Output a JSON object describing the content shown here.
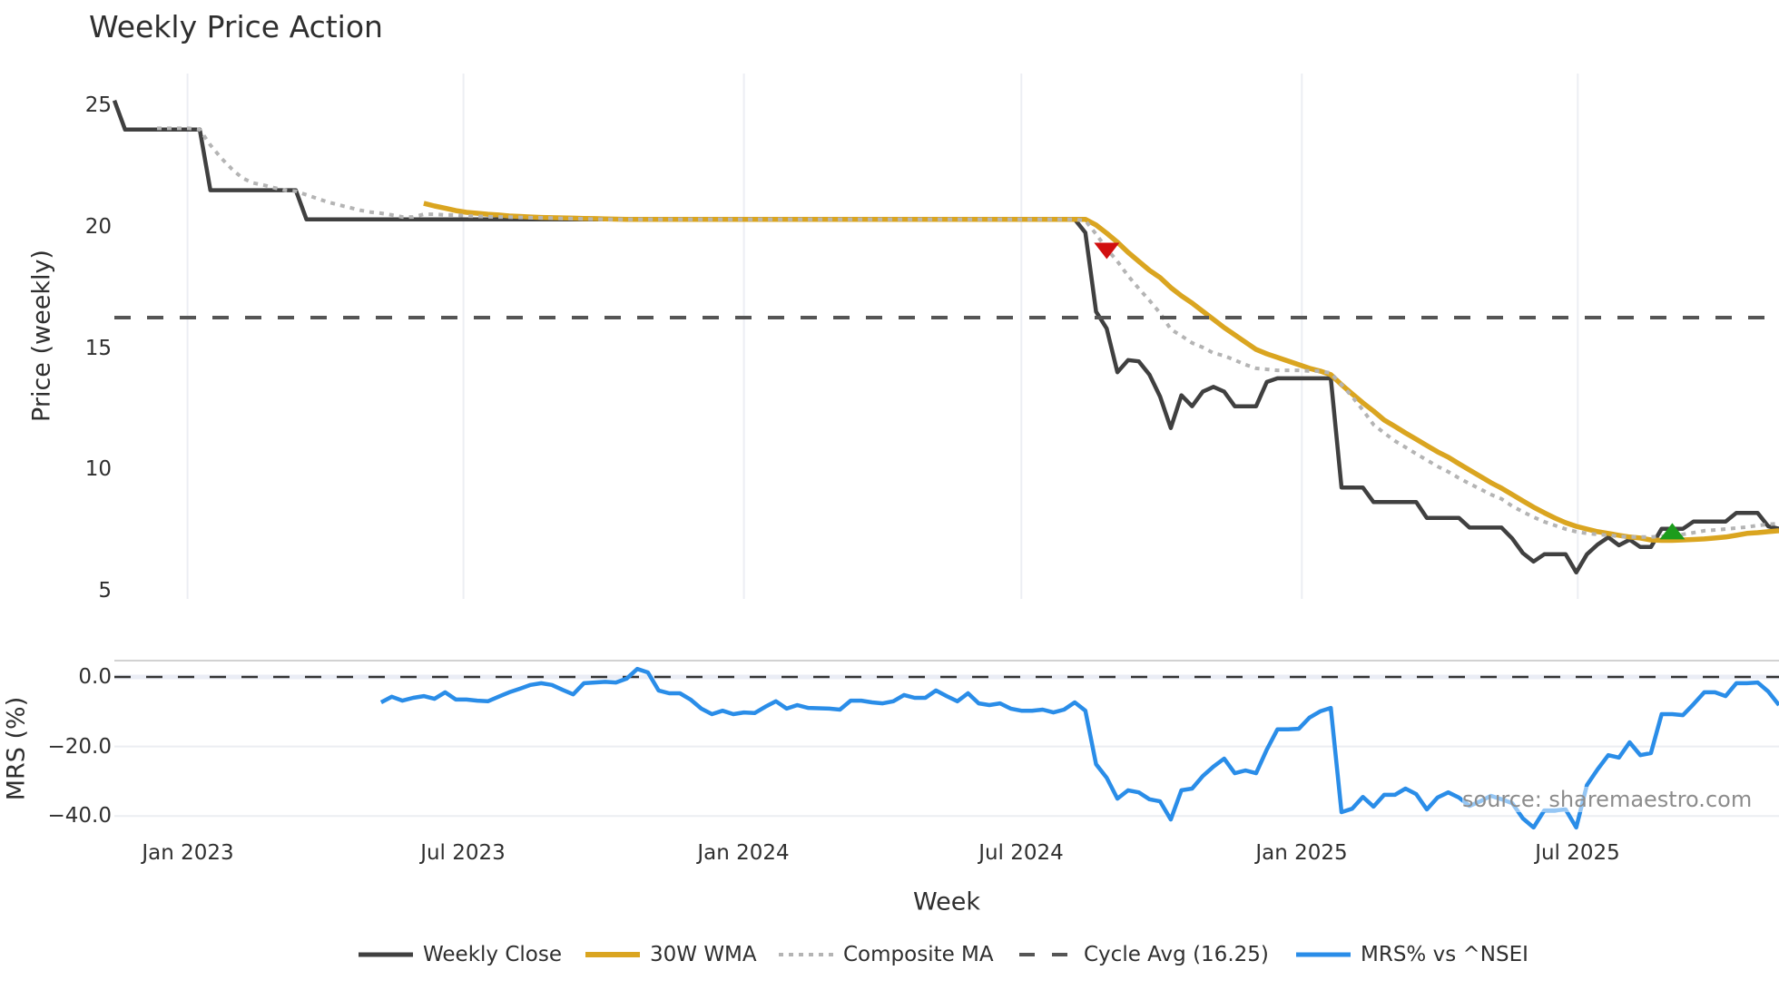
{
  "chart_data": {
    "type": "line",
    "title": "Weekly Price Action",
    "xlabel": "Week",
    "x_range": [
      "2022-11-14",
      "2025-11-10"
    ],
    "x_start": "2022-11-14",
    "x_step_days": 7,
    "xticks": [
      {
        "date": "2023-01-01",
        "label": "Jan 2023"
      },
      {
        "date": "2023-07-01",
        "label": "Jul 2023"
      },
      {
        "date": "2024-01-01",
        "label": "Jan 2024"
      },
      {
        "date": "2024-07-01",
        "label": "Jul 2024"
      },
      {
        "date": "2025-01-01",
        "label": "Jan 2025"
      },
      {
        "date": "2025-07-01",
        "label": "Jul 2025"
      }
    ],
    "grid": {
      "x": true,
      "y_price": false,
      "y_mrs": true
    },
    "legend_position": "bottom",
    "panels": [
      {
        "id": "price",
        "ylabel": "Price (weekly)",
        "yrange": [
          4.66,
          26.31
        ],
        "yticks": [
          {
            "value": 25,
            "label": "25"
          },
          {
            "value": 20,
            "label": "20"
          },
          {
            "value": 15,
            "label": "15"
          },
          {
            "value": 10,
            "label": "10"
          },
          {
            "value": 5,
            "label": "5"
          }
        ]
      },
      {
        "id": "mrs",
        "ylabel": "MRS (%)",
        "yrange": [
          -44.9,
          4.7
        ],
        "yticks": [
          {
            "value": 0,
            "label": "0.0"
          },
          {
            "value": -20,
            "label": "−20.0"
          },
          {
            "value": -40,
            "label": "−40.0"
          }
        ]
      }
    ],
    "series": [
      {
        "name": "Weekly Close",
        "panel": "price",
        "color": "#404040",
        "dash": "solid",
        "start_index": 0,
        "values": [
          25.2,
          24.0,
          24.0,
          24.0,
          24.0,
          24.0,
          24.0,
          24.0,
          24.0,
          21.5,
          21.5,
          21.5,
          21.5,
          21.5,
          21.5,
          21.5,
          21.5,
          21.5,
          20.3,
          20.3,
          20.3,
          20.3,
          20.3,
          20.3,
          20.3,
          20.3,
          20.3,
          20.3,
          20.3,
          20.3,
          20.3,
          20.3,
          20.3,
          20.3,
          20.3,
          20.3,
          20.3,
          20.3,
          20.3,
          20.3,
          20.3,
          20.3,
          20.3,
          20.3,
          20.3,
          20.3,
          20.3,
          20.3,
          20.3,
          20.3,
          20.3,
          20.3,
          20.3,
          20.3,
          20.3,
          20.3,
          20.3,
          20.3,
          20.3,
          20.3,
          20.3,
          20.3,
          20.3,
          20.3,
          20.3,
          20.3,
          20.3,
          20.3,
          20.3,
          20.3,
          20.3,
          20.3,
          20.3,
          20.3,
          20.3,
          20.3,
          20.3,
          20.3,
          20.3,
          20.3,
          20.3,
          20.3,
          20.3,
          20.3,
          20.3,
          20.3,
          20.3,
          20.3,
          20.3,
          20.3,
          20.3,
          19.75,
          16.5,
          15.8,
          14.0,
          14.5,
          14.45,
          13.9,
          13.0,
          11.7,
          13.05,
          12.6,
          13.2,
          13.4,
          13.2,
          12.6,
          12.6,
          12.6,
          13.6,
          13.75,
          13.75,
          13.75,
          13.75,
          13.75,
          13.75,
          9.25,
          9.25,
          9.25,
          8.65,
          8.65,
          8.65,
          8.65,
          8.65,
          8.0,
          8.0,
          8.0,
          8.0,
          7.6,
          7.6,
          7.6,
          7.6,
          7.15,
          6.55,
          6.2,
          6.5,
          6.5,
          6.5,
          5.75,
          6.5,
          6.9,
          7.2,
          6.87,
          7.1,
          6.8,
          6.8,
          7.55,
          7.55,
          7.55,
          7.85,
          7.85,
          7.85,
          7.85,
          8.2,
          8.2,
          8.2,
          7.65,
          7.55
        ]
      },
      {
        "name": "30W WMA",
        "panel": "price",
        "color": "#DAA520",
        "dash": "solid",
        "start_index": 29,
        "values": [
          20.96,
          20.85,
          20.76,
          20.66,
          20.59,
          20.55,
          20.51,
          20.48,
          20.44,
          20.42,
          20.4,
          20.38,
          20.37,
          20.36,
          20.35,
          20.34,
          20.33,
          20.32,
          20.31,
          20.3,
          20.3,
          20.3,
          20.3,
          20.3,
          20.3,
          20.3,
          20.3,
          20.3,
          20.3,
          20.3,
          20.3,
          20.3,
          20.3,
          20.3,
          20.3,
          20.3,
          20.3,
          20.3,
          20.3,
          20.3,
          20.3,
          20.3,
          20.3,
          20.3,
          20.3,
          20.3,
          20.3,
          20.3,
          20.3,
          20.3,
          20.3,
          20.3,
          20.3,
          20.3,
          20.3,
          20.3,
          20.3,
          20.3,
          20.3,
          20.3,
          20.3,
          20.3,
          20.3,
          20.07,
          19.73,
          19.36,
          18.94,
          18.57,
          18.2,
          17.9,
          17.49,
          17.15,
          16.85,
          16.51,
          16.18,
          15.84,
          15.54,
          15.24,
          14.94,
          14.76,
          14.61,
          14.46,
          14.31,
          14.16,
          14.05,
          13.9,
          13.49,
          13.11,
          12.74,
          12.4,
          12.03,
          11.77,
          11.5,
          11.24,
          10.98,
          10.72,
          10.5,
          10.23,
          9.97,
          9.71,
          9.45,
          9.22,
          8.96,
          8.7,
          8.44,
          8.21,
          7.99,
          7.8,
          7.65,
          7.54,
          7.43,
          7.36,
          7.28,
          7.21,
          7.17,
          7.09,
          7.07,
          7.07,
          7.09,
          7.11,
          7.13,
          7.17,
          7.21,
          7.28,
          7.36,
          7.39,
          7.43,
          7.47
        ]
      },
      {
        "name": "Composite MA",
        "panel": "price",
        "color": "#b4b4b4",
        "dash": "dot",
        "start_index": 4,
        "values": [
          24.05,
          24.05,
          24.05,
          24.05,
          24.0,
          23.36,
          22.83,
          22.38,
          22.0,
          21.8,
          21.71,
          21.6,
          21.5,
          21.46,
          21.31,
          21.16,
          21.01,
          20.9,
          20.79,
          20.68,
          20.6,
          20.55,
          20.48,
          20.4,
          20.4,
          20.51,
          20.51,
          20.48,
          20.48,
          20.44,
          20.42,
          20.41,
          20.4,
          20.39,
          20.38,
          20.37,
          20.36,
          20.35,
          20.34,
          20.33,
          20.32,
          20.31,
          20.3,
          20.3,
          20.3,
          20.3,
          20.3,
          20.3,
          20.3,
          20.3,
          20.3,
          20.3,
          20.3,
          20.3,
          20.3,
          20.3,
          20.3,
          20.3,
          20.3,
          20.3,
          20.3,
          20.3,
          20.3,
          20.3,
          20.3,
          20.3,
          20.3,
          20.3,
          20.3,
          20.3,
          20.3,
          20.3,
          20.3,
          20.3,
          20.3,
          20.3,
          20.3,
          20.3,
          20.3,
          20.3,
          20.3,
          20.3,
          20.3,
          20.3,
          20.3,
          20.3,
          20.3,
          20.25,
          19.69,
          19.09,
          18.57,
          17.97,
          17.45,
          16.96,
          16.44,
          15.77,
          15.5,
          15.21,
          15.02,
          14.79,
          14.68,
          14.5,
          14.31,
          14.16,
          14.12,
          14.08,
          14.08,
          14.08,
          14.05,
          14.05,
          13.97,
          13.49,
          13.0,
          12.44,
          11.84,
          11.5,
          11.17,
          10.91,
          10.64,
          10.38,
          10.12,
          9.9,
          9.64,
          9.41,
          9.19,
          8.96,
          8.78,
          8.48,
          8.25,
          8.03,
          7.84,
          7.69,
          7.54,
          7.43,
          7.36,
          7.32,
          7.28,
          7.24,
          7.21,
          7.21,
          7.21,
          7.24,
          7.28,
          7.32,
          7.39,
          7.47,
          7.5,
          7.54,
          7.58,
          7.62,
          7.69,
          7.73,
          7.77
        ]
      },
      {
        "name": "Cycle Avg (16.25)",
        "panel": "price",
        "color": "#555555",
        "dash": "dash",
        "hline": 16.25
      },
      {
        "name": "MRS% vs ^NSEI",
        "panel": "mrs",
        "color": "#2a8de8",
        "dash": "solid",
        "start_index": 25,
        "values": [
          -7.3,
          -5.7,
          -6.8,
          -6.0,
          -5.5,
          -6.3,
          -4.4,
          -6.5,
          -6.5,
          -6.8,
          -7.0,
          -5.7,
          -4.4,
          -3.4,
          -2.3,
          -1.8,
          -2.3,
          -3.7,
          -5.0,
          -1.8,
          -1.6,
          -1.4,
          -1.6,
          -0.5,
          2.3,
          1.3,
          -3.9,
          -4.7,
          -4.7,
          -6.5,
          -9.1,
          -10.7,
          -9.7,
          -10.7,
          -10.2,
          -10.4,
          -8.6,
          -7.0,
          -9.1,
          -8.1,
          -8.9,
          -9.0,
          -9.1,
          -9.4,
          -6.8,
          -6.8,
          -7.3,
          -7.6,
          -7.0,
          -5.2,
          -6.0,
          -6.0,
          -3.9,
          -5.5,
          -7.0,
          -4.7,
          -7.6,
          -8.1,
          -7.6,
          -9.1,
          -9.7,
          -9.7,
          -9.4,
          -10.2,
          -9.4,
          -7.3,
          -9.7,
          -25.1,
          -29.0,
          -35.0,
          -32.6,
          -33.2,
          -35.2,
          -35.8,
          -41.0,
          -32.6,
          -32.1,
          -28.5,
          -25.8,
          -23.5,
          -27.7,
          -26.9,
          -27.7,
          -20.9,
          -15.1,
          -15.1,
          -14.9,
          -11.7,
          -9.9,
          -8.9,
          -38.9,
          -37.9,
          -34.5,
          -37.3,
          -33.9,
          -33.9,
          -32.1,
          -33.7,
          -38.1,
          -34.7,
          -33.2,
          -34.7,
          -37.1,
          -35.8,
          -34.2,
          -35.2,
          -36.3,
          -40.7,
          -43.3,
          -38.4,
          -38.4,
          -38.1,
          -43.3,
          -31.1,
          -26.6,
          -22.5,
          -23.2,
          -18.8,
          -22.5,
          -21.9,
          -10.7,
          -10.7,
          -11.0,
          -7.8,
          -4.4,
          -4.4,
          -5.5,
          -1.8,
          -1.8,
          -1.6,
          -4.2,
          -8.1
        ]
      }
    ],
    "reference_lines": [
      {
        "panel": "mrs",
        "value": 0,
        "color": "#333333",
        "dash": "dash"
      }
    ],
    "markers": [
      {
        "type": "sell",
        "symbol": "triangle-down",
        "color": "#d10f0f",
        "panel": "price",
        "index": 93,
        "value": 19.0
      },
      {
        "type": "buy",
        "symbol": "triangle-up",
        "color": "#1c9c1c",
        "panel": "price",
        "index": 146,
        "value": 7.45
      }
    ],
    "annotations": [
      {
        "text": "source: sharemaestro.com"
      }
    ]
  }
}
